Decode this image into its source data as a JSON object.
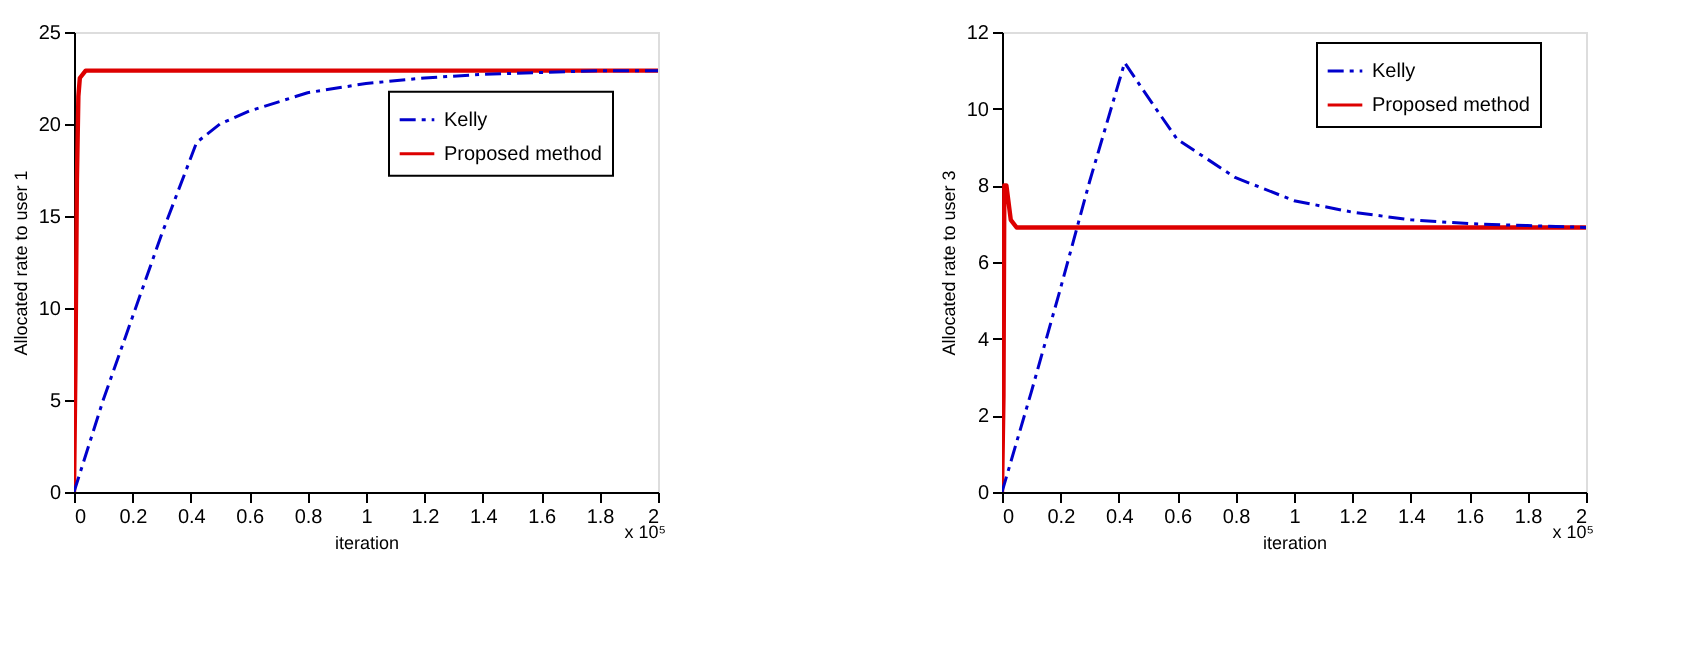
{
  "chart_data": [
    {
      "type": "line",
      "xlabel": "iteration",
      "ylabel": "Allocated rate to user 1",
      "xlim": [
        0,
        2
      ],
      "xticks": [
        0,
        0.2,
        0.4,
        0.6,
        0.8,
        1,
        1.2,
        1.4,
        1.6,
        1.8,
        2
      ],
      "ylim": [
        0,
        25
      ],
      "yticks": [
        0,
        5,
        10,
        15,
        20,
        25
      ],
      "grid": false,
      "legend": "top right",
      "annotations": [
        "x 10⁵"
      ],
      "series": [
        {
          "name": "Kelly",
          "color": "#0000cc",
          "line_style": "dashed",
          "x": [
            0,
            0.05,
            0.1,
            0.2,
            0.3,
            0.42,
            0.5,
            0.6,
            0.8,
            1.0,
            1.2,
            1.4,
            1.6,
            1.8,
            2.0
          ],
          "values": [
            0,
            2.5,
            5,
            9.5,
            14,
            19,
            20,
            20.7,
            21.7,
            22.2,
            22.5,
            22.7,
            22.8,
            22.9,
            22.9
          ]
        },
        {
          "name": "Proposed method",
          "color": "#dd0000",
          "line_style": "solid",
          "x": [
            0,
            0.005,
            0.01,
            0.015,
            0.02,
            0.04,
            2
          ],
          "values": [
            0,
            7,
            17,
            21.5,
            22.5,
            22.9,
            22.9
          ]
        }
      ]
    },
    {
      "type": "line",
      "xlabel": "iteration",
      "ylabel": "Allocated rate to user 3",
      "xlim": [
        0,
        2
      ],
      "xticks": [
        0,
        0.2,
        0.4,
        0.6,
        0.8,
        1,
        1.2,
        1.4,
        1.6,
        1.8,
        2
      ],
      "ylim": [
        0,
        12
      ],
      "yticks": [
        0,
        2,
        4,
        6,
        8,
        10,
        12
      ],
      "grid": false,
      "legend": "top right",
      "annotations": [
        "x 10⁵"
      ],
      "series": [
        {
          "name": "Kelly",
          "color": "#0000cc",
          "line_style": "dashed",
          "x": [
            0,
            0.1,
            0.2,
            0.3,
            0.42,
            0.5,
            0.6,
            0.7,
            0.8,
            1.0,
            1.2,
            1.4,
            1.6,
            1.8,
            2.0
          ],
          "values": [
            0,
            2.6,
            5.3,
            8.1,
            11.2,
            10.3,
            9.2,
            8.7,
            8.2,
            7.6,
            7.3,
            7.1,
            7.0,
            6.95,
            6.9
          ]
        },
        {
          "name": "Proposed method",
          "color": "#dd0000",
          "line_style": "solid",
          "x": [
            0,
            0.005,
            0.008,
            0.015,
            0.03,
            0.05,
            2
          ],
          "values": [
            0,
            2.5,
            8,
            8,
            7.1,
            6.9,
            6.9
          ]
        }
      ]
    }
  ]
}
